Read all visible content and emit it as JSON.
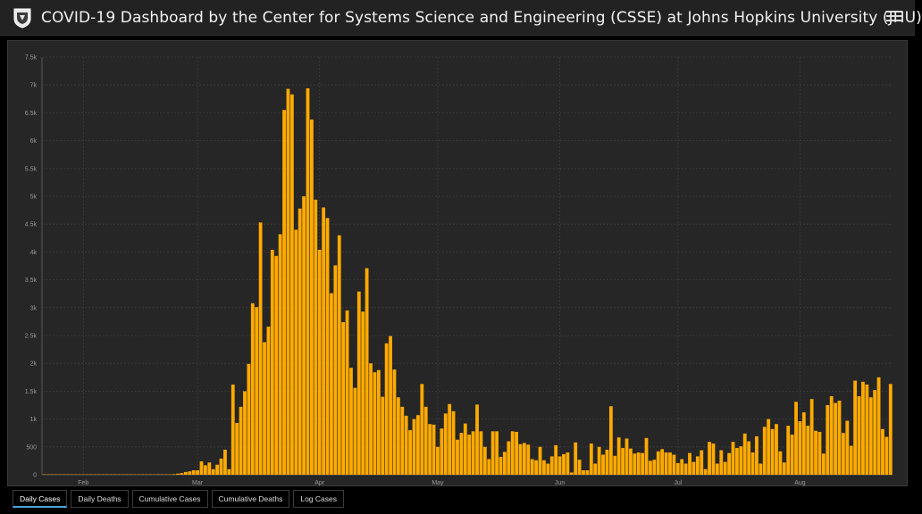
{
  "header": {
    "title": "COVID-19 Dashboard by the Center for Systems Science and Engineering (CSSE) at Johns Hopkins University (JHU)",
    "logo_icon": "jhu-shield-icon",
    "menu_icon": "hamburger-menu-icon"
  },
  "tabs": [
    {
      "label": "Daily Cases",
      "active": true
    },
    {
      "label": "Daily Deaths",
      "active": false
    },
    {
      "label": "Cumulative Cases",
      "active": false
    },
    {
      "label": "Cumulative Deaths",
      "active": false
    },
    {
      "label": "Log Cases",
      "active": false
    }
  ],
  "colors": {
    "bar": "#ffaa00",
    "background": "#262626",
    "active_tab": "#4aa3df"
  },
  "chart_data": {
    "type": "bar",
    "title": "",
    "xlabel": "",
    "ylabel": "",
    "ylim": [
      0,
      7500
    ],
    "y_ticks": [
      "0",
      "500",
      "1k",
      "1.5k",
      "2k",
      "2.5k",
      "3k",
      "3.5k",
      "4k",
      "4.5k",
      "5k",
      "5.5k",
      "6k",
      "6.5k",
      "7k",
      "7.5k"
    ],
    "x_ticks": [
      "Feb",
      "Mar",
      "Apr",
      "May",
      "Jun",
      "Jul",
      "Aug"
    ],
    "x_tick_day_index": [
      10,
      39,
      70,
      100,
      131,
      161,
      192
    ],
    "grid": true,
    "series": [
      {
        "values": [
          0,
          0,
          0,
          0,
          0,
          0,
          0,
          0,
          0,
          0,
          0,
          0,
          0,
          0,
          0,
          0,
          0,
          0,
          0,
          0,
          0,
          0,
          0,
          0,
          0,
          0,
          0,
          0,
          0,
          0,
          0,
          0,
          0,
          10,
          20,
          30,
          50,
          60,
          80,
          80,
          240,
          170,
          220,
          100,
          180,
          290,
          450,
          100,
          1620,
          930,
          1220,
          1500,
          1990,
          3080,
          3010,
          4530,
          2380,
          2660,
          4040,
          3930,
          4320,
          6550,
          6930,
          6830,
          4400,
          4780,
          5000,
          6940,
          6380,
          4940,
          4040,
          4800,
          4610,
          3260,
          3760,
          4300,
          2740,
          2950,
          1920,
          1560,
          3290,
          2930,
          3710,
          2000,
          1840,
          1880,
          1400,
          2360,
          2490,
          1890,
          1390,
          1220,
          1060,
          800,
          1000,
          1070,
          1630,
          1220,
          910,
          900,
          500,
          830,
          1100,
          1270,
          1140,
          630,
          750,
          920,
          720,
          780,
          1260,
          780,
          500,
          280,
          780,
          780,
          320,
          410,
          600,
          780,
          770,
          550,
          570,
          540,
          280,
          260,
          500,
          260,
          200,
          330,
          530,
          330,
          370,
          400,
          40,
          580,
          270,
          80,
          80,
          560,
          200,
          500,
          360,
          450,
          1230,
          340,
          670,
          480,
          650,
          470,
          380,
          400,
          390,
          660,
          250,
          270,
          420,
          460,
          400,
          400,
          360,
          210,
          280,
          200,
          390,
          230,
          330,
          440,
          100,
          590,
          560,
          200,
          440,
          230,
          390,
          590,
          480,
          510,
          740,
          600,
          400,
          690,
          200,
          860,
          1000,
          820,
          910,
          420,
          220,
          880,
          720,
          1310,
          960,
          1120,
          880,
          1360,
          790,
          770,
          380,
          1250,
          1410,
          1290,
          1330,
          750,
          970,
          520,
          1690,
          1410,
          1670,
          1620,
          1390,
          1520,
          1750,
          820,
          680,
          1630
        ]
      }
    ]
  }
}
